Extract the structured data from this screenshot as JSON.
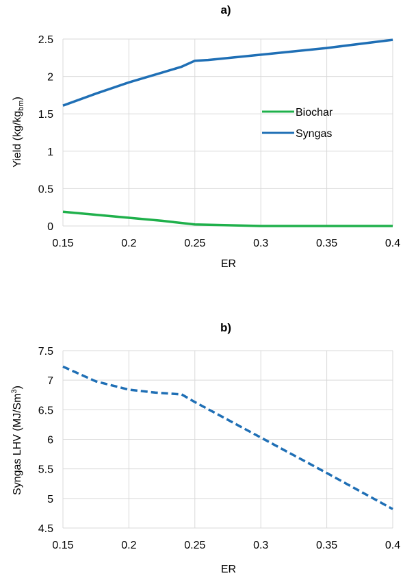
{
  "chart_data": [
    {
      "type": "line",
      "title": "a)",
      "xlabel": "ER",
      "ylabel": "Yield (kg/kg",
      "ylabel_sub": "bm",
      "ylabel_end": ")",
      "xlim": [
        0.15,
        0.4
      ],
      "ylim": [
        0,
        2.5
      ],
      "xticks": [
        "0.15",
        "0.2",
        "0.25",
        "0.3",
        "0.35",
        "0.4"
      ],
      "yticks": [
        "0",
        "0.5",
        "1",
        "1.5",
        "2",
        "2.5"
      ],
      "grid": true,
      "legend": "center-right",
      "series": [
        {
          "name": "Biochar",
          "color": "#1fb04b",
          "style": "solid",
          "x": [
            0.15,
            0.175,
            0.2,
            0.225,
            0.24,
            0.25,
            0.275,
            0.3,
            0.35,
            0.4
          ],
          "y": [
            0.19,
            0.15,
            0.11,
            0.07,
            0.04,
            0.02,
            0.01,
            0.0,
            0.0,
            0.0
          ]
        },
        {
          "name": "Syngas",
          "color": "#1f6fb5",
          "style": "solid",
          "x": [
            0.15,
            0.175,
            0.2,
            0.225,
            0.24,
            0.25,
            0.26,
            0.3,
            0.35,
            0.4
          ],
          "y": [
            1.61,
            1.77,
            1.92,
            2.05,
            2.13,
            2.21,
            2.22,
            2.29,
            2.38,
            2.49
          ]
        }
      ]
    },
    {
      "type": "line",
      "title": "b)",
      "xlabel": "ER",
      "ylabel": "Syngas LHV (MJ/Sm",
      "ylabel_sup": "3",
      "ylabel_end": ")",
      "xlim": [
        0.15,
        0.4
      ],
      "ylim": [
        4.5,
        7.5
      ],
      "xticks": [
        "0.15",
        "0.2",
        "0.25",
        "0.3",
        "0.35",
        "0.4"
      ],
      "yticks": [
        "4.5",
        "5",
        "5.5",
        "6",
        "6.5",
        "7",
        "7.5"
      ],
      "grid": true,
      "series": [
        {
          "color": "#1f6fb5",
          "style": "dashed",
          "x": [
            0.15,
            0.175,
            0.2,
            0.22,
            0.24,
            0.25,
            0.3,
            0.35,
            0.4
          ],
          "y": [
            7.23,
            6.98,
            6.84,
            6.79,
            6.76,
            6.63,
            6.03,
            5.43,
            4.82
          ]
        }
      ]
    }
  ]
}
